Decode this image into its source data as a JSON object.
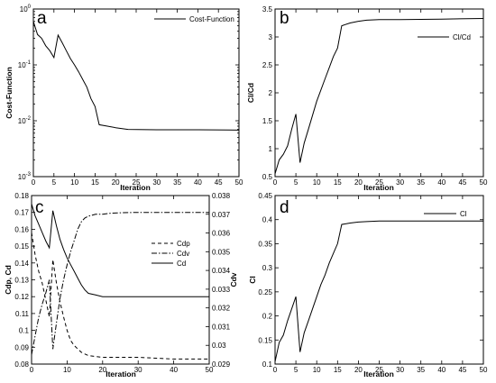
{
  "chart_data": [
    {
      "panel": "a",
      "type": "line",
      "xlabel": "Iteration",
      "ylabel": "Cost-Function",
      "xlim": [
        0,
        50
      ],
      "ylim": [
        0.001,
        1
      ],
      "yscale": "log",
      "xticks": [
        0,
        5,
        10,
        15,
        20,
        25,
        30,
        35,
        40,
        45,
        50
      ],
      "yticks": [
        {
          "value": 0.001,
          "base": "10",
          "exp": "-3"
        },
        {
          "value": 0.01,
          "base": "10",
          "exp": "-2"
        },
        {
          "value": 0.1,
          "base": "10",
          "exp": "-1"
        },
        {
          "value": 1,
          "base": "10",
          "exp": "0"
        }
      ],
      "legend_position": "top-right",
      "series": [
        {
          "name": "Cost-Function",
          "style": "solid",
          "x": [
            0,
            1,
            2,
            3,
            4,
            5,
            6,
            7,
            8,
            9,
            10,
            11,
            12,
            13,
            14,
            15,
            16,
            18,
            20,
            23,
            30,
            40,
            50
          ],
          "y": [
            0.6,
            0.35,
            0.3,
            0.22,
            0.18,
            0.135,
            0.34,
            0.25,
            0.18,
            0.13,
            0.1,
            0.075,
            0.055,
            0.04,
            0.025,
            0.018,
            0.0085,
            0.008,
            0.0075,
            0.007,
            0.0069,
            0.0069,
            0.0068
          ]
        }
      ]
    },
    {
      "panel": "b",
      "type": "line",
      "xlabel": "Iteration",
      "ylabel": "Cl/Cd",
      "xlim": [
        0,
        50
      ],
      "ylim": [
        0.5,
        3.5
      ],
      "xticks": [
        0,
        5,
        10,
        15,
        20,
        25,
        30,
        35,
        40,
        45,
        50
      ],
      "yticks": [
        0.5,
        1,
        1.5,
        2,
        2.5,
        3,
        3.5
      ],
      "legend_position": "top-right",
      "series": [
        {
          "name": "Cl/Cd",
          "style": "solid",
          "x": [
            0,
            1,
            2,
            3,
            4,
            5,
            6,
            7,
            8,
            9,
            10,
            11,
            12,
            13,
            14,
            15,
            16,
            18,
            20,
            22,
            25,
            30,
            40,
            50
          ],
          "y": [
            0.55,
            0.8,
            0.9,
            1.05,
            1.35,
            1.62,
            0.75,
            1.1,
            1.35,
            1.6,
            1.85,
            2.05,
            2.25,
            2.45,
            2.65,
            2.8,
            3.2,
            3.25,
            3.28,
            3.3,
            3.31,
            3.31,
            3.32,
            3.33
          ]
        }
      ]
    },
    {
      "panel": "c",
      "type": "line",
      "xlabel": "Iteration",
      "ylabel": "Cdp, Cd",
      "y2label": "Cdv",
      "xlim": [
        0,
        50
      ],
      "ylim": [
        0.08,
        0.18
      ],
      "y2lim": [
        0.029,
        0.038
      ],
      "xticks": [
        0,
        10,
        20,
        30,
        40,
        50
      ],
      "yticks": [
        0.08,
        0.09,
        0.1,
        0.11,
        0.12,
        0.13,
        0.14,
        0.15,
        0.16,
        0.17,
        0.18
      ],
      "y2ticks": [
        0.029,
        0.03,
        0.031,
        0.032,
        0.033,
        0.034,
        0.035,
        0.036,
        0.037,
        0.038
      ],
      "legend_position": "right",
      "series": [
        {
          "name": "Cdp",
          "style": "dashed",
          "axis": "left",
          "x": [
            0,
            1,
            2,
            3,
            4,
            5,
            6,
            7,
            8,
            9,
            10,
            11,
            12,
            13,
            14,
            15,
            16,
            20,
            25,
            30,
            40,
            50
          ],
          "y": [
            0.158,
            0.145,
            0.135,
            0.128,
            0.118,
            0.108,
            0.142,
            0.128,
            0.117,
            0.108,
            0.1,
            0.094,
            0.091,
            0.089,
            0.087,
            0.086,
            0.085,
            0.084,
            0.084,
            0.084,
            0.083,
            0.083
          ]
        },
        {
          "name": "Cdv",
          "style": "dashdot",
          "axis": "right",
          "x": [
            0,
            1,
            2,
            3,
            4,
            5,
            6,
            7,
            8,
            9,
            10,
            11,
            12,
            13,
            14,
            15,
            16,
            18,
            20,
            22,
            25,
            30,
            40,
            50
          ],
          "y": [
            0.0295,
            0.0305,
            0.0315,
            0.0322,
            0.0328,
            0.0335,
            0.0298,
            0.0312,
            0.0325,
            0.0335,
            0.0343,
            0.035,
            0.0356,
            0.0362,
            0.0366,
            0.0368,
            0.0369,
            0.037,
            0.037,
            0.03705,
            0.03708,
            0.0371,
            0.0371,
            0.0371
          ]
        },
        {
          "name": "Cd",
          "style": "solid",
          "axis": "left",
          "x": [
            0,
            1,
            2,
            3,
            4,
            5,
            6,
            7,
            8,
            9,
            10,
            11,
            12,
            13,
            14,
            15,
            16,
            18,
            20,
            25,
            30,
            40,
            50
          ],
          "y": [
            0.175,
            0.168,
            0.163,
            0.158,
            0.153,
            0.149,
            0.171,
            0.162,
            0.154,
            0.148,
            0.143,
            0.139,
            0.135,
            0.131,
            0.127,
            0.124,
            0.122,
            0.121,
            0.12,
            0.12,
            0.12,
            0.12,
            0.12
          ]
        }
      ]
    },
    {
      "panel": "d",
      "type": "line",
      "xlabel": "Iteration",
      "ylabel": "Cl",
      "xlim": [
        0,
        50
      ],
      "ylim": [
        0.1,
        0.45
      ],
      "xticks": [
        0,
        5,
        10,
        15,
        20,
        25,
        30,
        35,
        40,
        45,
        50
      ],
      "yticks": [
        0.1,
        0.15,
        0.2,
        0.25,
        0.3,
        0.35,
        0.4,
        0.45
      ],
      "legend_position": "top-right",
      "series": [
        {
          "name": "Cl",
          "style": "solid",
          "x": [
            0,
            1,
            2,
            3,
            4,
            5,
            6,
            7,
            8,
            9,
            10,
            11,
            12,
            13,
            14,
            15,
            16,
            18,
            20,
            22,
            25,
            30,
            40,
            50
          ],
          "y": [
            0.105,
            0.145,
            0.16,
            0.19,
            0.215,
            0.24,
            0.125,
            0.165,
            0.19,
            0.215,
            0.24,
            0.265,
            0.285,
            0.31,
            0.33,
            0.35,
            0.39,
            0.393,
            0.395,
            0.396,
            0.397,
            0.397,
            0.397,
            0.397
          ]
        }
      ]
    }
  ]
}
